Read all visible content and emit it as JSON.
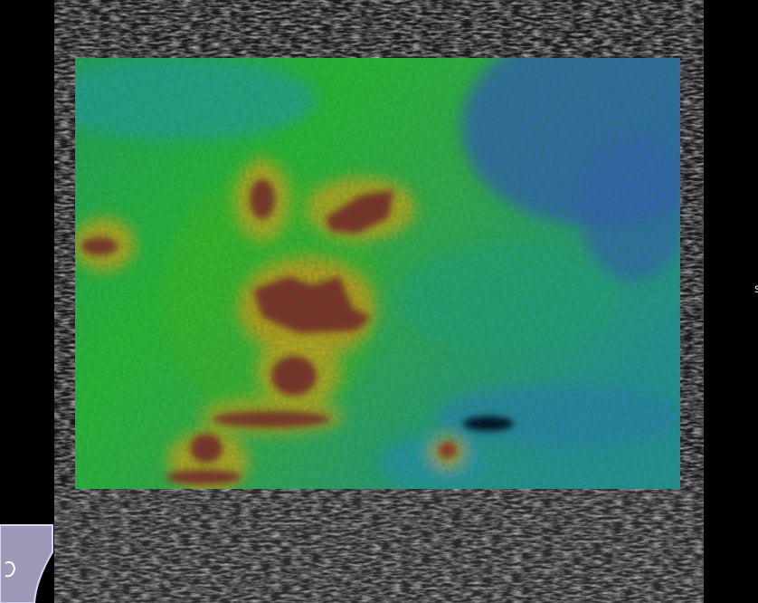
{
  "side_label": "s"
}
